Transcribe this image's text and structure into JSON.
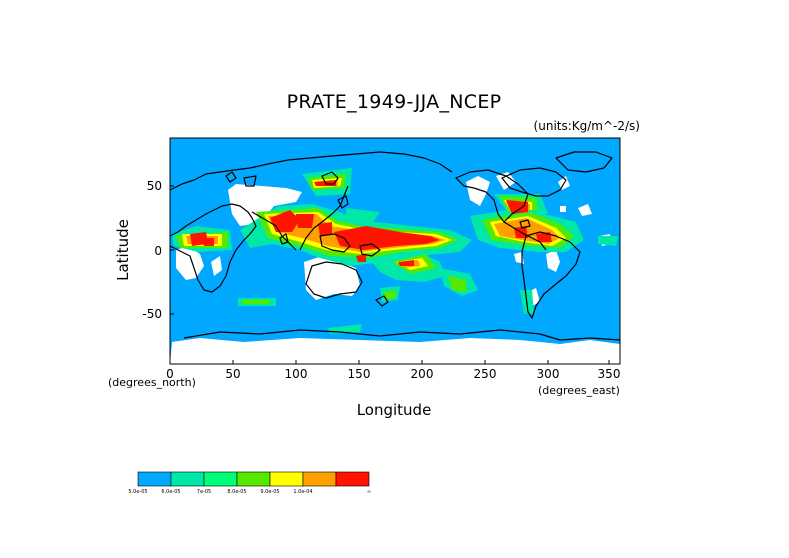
{
  "title": "PRATE_1949-JJA_NCEP",
  "units": "(units:Kg/m^-2/s)",
  "map": {
    "xlabel": "Longitude",
    "ylabel": "Latitude",
    "x_unit_label": "(degrees_east)",
    "y_unit_label": "(degrees_north)",
    "xlim": [
      0,
      357
    ],
    "ylim": [
      -90,
      88
    ],
    "x_ticks": [
      "0",
      "50",
      "100",
      "150",
      "200",
      "250",
      "300",
      "350"
    ],
    "y_ticks": [
      "50",
      "0",
      "-50"
    ],
    "background_color": "#00a8ff",
    "missing_color": "#ffffff",
    "coastline_color": "#000000"
  },
  "colorbar": {
    "colors": [
      "#00a8ff",
      "#00e8a8",
      "#00ff78",
      "#55e800",
      "#ffff00",
      "#ffa000",
      "#ff1400"
    ],
    "labels": [
      "5.0e-05",
      "6.0e-05",
      "7e-05",
      "8.0e-05",
      "9.0e-05",
      "1.0e-04",
      "∞"
    ]
  }
}
